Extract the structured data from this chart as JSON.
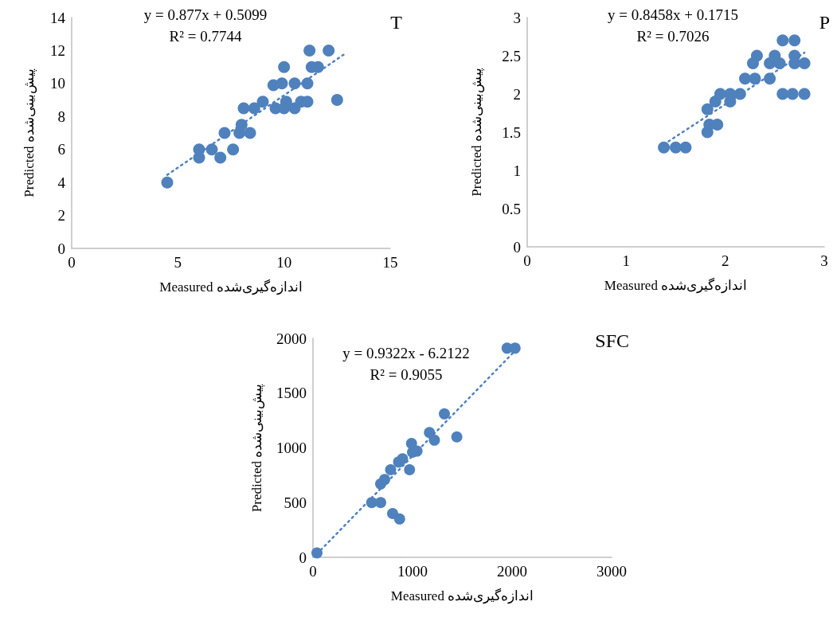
{
  "chart_data": [
    {
      "type": "scatter",
      "title": "T",
      "xlabel": "Measured اندازه‌گیری‌شده",
      "ylabel": "Predicted پیش‌بینی‌شده",
      "annotations": [
        "y = 0.877x + 0.5099",
        "R² = 0.7744"
      ],
      "xlim": [
        0,
        15
      ],
      "xticks": [
        0,
        5,
        10,
        15
      ],
      "ylim": [
        0,
        14
      ],
      "yticks": [
        0,
        2,
        4,
        6,
        8,
        10,
        12,
        14
      ],
      "grid": false,
      "series": [
        {
          "marker": "circle",
          "color": "#4f81bd",
          "x": [
            4.5,
            6.0,
            6.0,
            6.6,
            7.0,
            7.6,
            7.2,
            7.9,
            8.4,
            8.0,
            8.1,
            8.6,
            9.0,
            9.6,
            9.5,
            10.0,
            10.1,
            10.5,
            10.8,
            11.1,
            9.9,
            10.5,
            11.1,
            10.0,
            11.3,
            11.6,
            11.2,
            12.1,
            12.5
          ],
          "values": [
            4.0,
            5.5,
            6.0,
            6.0,
            5.5,
            6.0,
            7.0,
            7.0,
            7.0,
            7.5,
            8.5,
            8.5,
            8.9,
            8.5,
            9.9,
            8.5,
            8.9,
            8.5,
            8.9,
            8.9,
            10.0,
            10.0,
            10.0,
            11.0,
            11.0,
            11.0,
            12.0,
            12.0,
            9.0
          ]
        },
        {
          "type": "line",
          "marker": "none",
          "line_style": "dotted",
          "color": "#4f81bd",
          "x": [
            4.5,
            12.8
          ],
          "values": [
            4.46,
            11.74
          ]
        }
      ]
    },
    {
      "type": "scatter",
      "title": "P",
      "xlabel": "Measured اندازه‌گیری‌شده",
      "ylabel": "Predicted پیش‌بینی‌شده",
      "annotations": [
        "y = 0.8458x + 0.1715",
        "R² = 0.7026"
      ],
      "xlim": [
        0,
        3
      ],
      "xticks": [
        0,
        1,
        2,
        3
      ],
      "ylim": [
        0,
        3
      ],
      "yticks": [
        0,
        0.5,
        1,
        1.5,
        2,
        2.5,
        3
      ],
      "grid": false,
      "series": [
        {
          "marker": "circle",
          "color": "#4f81bd",
          "x": [
            1.38,
            1.5,
            1.6,
            1.82,
            1.84,
            1.92,
            1.82,
            1.9,
            1.95,
            2.05,
            2.15,
            2.05,
            2.2,
            2.3,
            2.45,
            2.28,
            2.32,
            2.45,
            2.55,
            2.7,
            2.8,
            2.5,
            2.7,
            2.58,
            2.7,
            2.58,
            2.68,
            2.8
          ],
          "values": [
            1.3,
            1.3,
            1.3,
            1.5,
            1.6,
            1.6,
            1.8,
            1.9,
            2.0,
            2.0,
            2.0,
            1.9,
            2.2,
            2.2,
            2.2,
            2.4,
            2.5,
            2.4,
            2.4,
            2.4,
            2.4,
            2.5,
            2.5,
            2.7,
            2.7,
            2.0,
            2.0,
            2.0
          ]
        },
        {
          "type": "line",
          "marker": "none",
          "line_style": "dotted",
          "color": "#4f81bd",
          "x": [
            1.38,
            2.8
          ],
          "values": [
            1.34,
            2.54
          ]
        }
      ]
    },
    {
      "type": "scatter",
      "title": "SFC",
      "xlabel": "Measured اندازه‌گیری‌شده",
      "ylabel": "Predicted پیش‌بینی‌شده",
      "annotations": [
        "y = 0.9322x - 6.2122",
        "R² = 0.9055"
      ],
      "xlim": [
        0,
        3000
      ],
      "xticks": [
        0,
        1000,
        2000,
        3000
      ],
      "ylim": [
        0,
        2000
      ],
      "yticks": [
        0,
        500,
        1000,
        1500,
        2000
      ],
      "grid": false,
      "series": [
        {
          "marker": "circle",
          "color": "#4f81bd",
          "x": [
            40,
            590,
            680,
            800,
            870,
            680,
            720,
            780,
            860,
            970,
            990,
            1045,
            900,
            1000,
            1170,
            1220,
            1320,
            1445,
            1950,
            2030
          ],
          "values": [
            40,
            500,
            500,
            400,
            350,
            670,
            710,
            800,
            870,
            800,
            1040,
            970,
            900,
            960,
            1140,
            1070,
            1310,
            1100,
            1910,
            1910
          ]
        },
        {
          "type": "line",
          "marker": "none",
          "line_style": "dotted",
          "color": "#4f81bd",
          "x": [
            40,
            2030
          ],
          "values": [
            31,
            1886
          ]
        }
      ]
    }
  ]
}
